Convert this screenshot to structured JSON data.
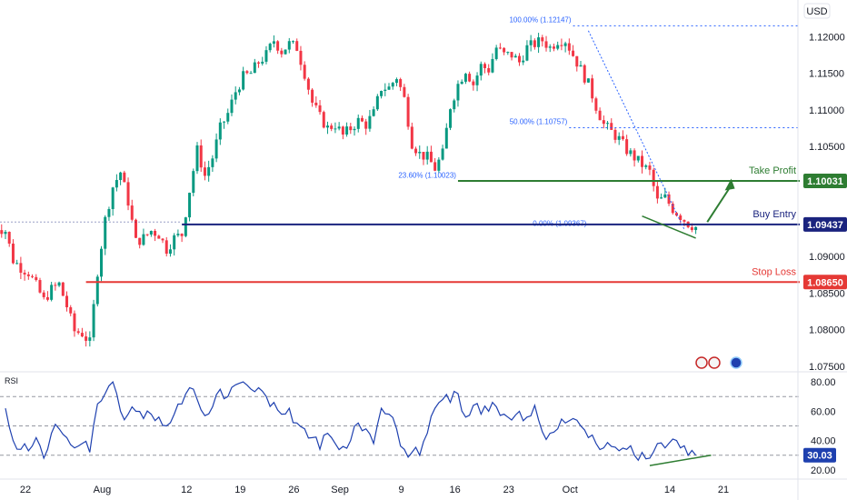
{
  "currency_label": "USD",
  "rsi_title": "RSI",
  "colors": {
    "up": "#089981",
    "down": "#f23645",
    "take_profit": "#2e7d32",
    "buy_entry": "#1a237e",
    "stop_loss": "#e53935",
    "fib": "#2962ff",
    "rsi_line": "#1e40af",
    "rsi_badge": "#1e40af",
    "grid": "#9598a1"
  },
  "chart_data": [
    {
      "type": "candlestick",
      "symbol_currency": "USD",
      "x_ticks": [
        {
          "label": "22",
          "day": 0
        },
        {
          "label": "Aug",
          "day": 10
        },
        {
          "label": "12",
          "day": 21
        },
        {
          "label": "19",
          "day": 28
        },
        {
          "label": "26",
          "day": 35
        },
        {
          "label": "Sep",
          "day": 41
        },
        {
          "label": "9",
          "day": 49
        },
        {
          "label": "16",
          "day": 56
        },
        {
          "label": "23",
          "day": 63
        },
        {
          "label": "Oct",
          "day": 71
        },
        {
          "label": "14",
          "day": 84
        },
        {
          "label": "21",
          "day": 91
        }
      ],
      "y_ticks": [
        1.12,
        1.115,
        1.11,
        1.105,
        1.1,
        1.09,
        1.085,
        1.08,
        1.075
      ],
      "y_tick_labels": [
        "1.12000",
        "1.11500",
        "1.11000",
        "1.10500",
        "1.10031",
        "1.09437",
        "1.09000",
        "1.08650",
        "1.08500",
        "1.08000",
        "1.07500"
      ],
      "ylim": [
        1.0745,
        1.1245
      ],
      "close_path": [
        [
          -2,
          1.0945
        ],
        [
          0,
          1.0935
        ],
        [
          1,
          1.0895
        ],
        [
          2,
          1.0885
        ],
        [
          3,
          1.0878
        ],
        [
          4,
          1.086
        ],
        [
          5,
          1.084
        ],
        [
          6,
          1.0855
        ],
        [
          7,
          1.0862
        ],
        [
          8,
          1.0832
        ],
        [
          9,
          1.0798
        ],
        [
          10,
          1.0795
        ],
        [
          11,
          1.0782
        ],
        [
          12,
          1.088
        ],
        [
          13,
          1.095
        ],
        [
          14,
          1.0995
        ],
        [
          15,
          1.1015
        ],
        [
          16,
          1.0975
        ],
        [
          17,
          1.092
        ],
        [
          18,
          1.0925
        ],
        [
          19,
          1.0935
        ],
        [
          20,
          1.093
        ],
        [
          21,
          1.091
        ],
        [
          22,
          1.0925
        ],
        [
          23,
          1.093
        ],
        [
          24,
          1.099
        ],
        [
          25,
          1.1045
        ],
        [
          26,
          1.101
        ],
        [
          27,
          1.1035
        ],
        [
          28,
          1.1075
        ],
        [
          29,
          1.1095
        ],
        [
          30,
          1.1125
        ],
        [
          31,
          1.1145
        ],
        [
          32,
          1.115
        ],
        [
          33,
          1.1165
        ],
        [
          34,
          1.1175
        ],
        [
          35,
          1.1195
        ],
        [
          36,
          1.118
        ],
        [
          37,
          1.119
        ],
        [
          38,
          1.1185
        ],
        [
          39,
          1.115
        ],
        [
          40,
          1.111
        ],
        [
          41,
          1.109
        ],
        [
          42,
          1.1075
        ],
        [
          43,
          1.108
        ],
        [
          44,
          1.1065
        ],
        [
          45,
          1.1075
        ],
        [
          46,
          1.1085
        ],
        [
          47,
          1.108
        ],
        [
          48,
          1.1095
        ],
        [
          49,
          1.113
        ],
        [
          50,
          1.113
        ],
        [
          51,
          1.1145
        ],
        [
          52,
          1.1115
        ],
        [
          53,
          1.1055
        ],
        [
          54,
          1.104
        ],
        [
          55,
          1.1035
        ],
        [
          56,
          1.102
        ],
        [
          57,
          1.104
        ],
        [
          58,
          1.1105
        ],
        [
          59,
          1.1135
        ],
        [
          60,
          1.1155
        ],
        [
          61,
          1.1135
        ],
        [
          62,
          1.116
        ],
        [
          63,
          1.1155
        ],
        [
          64,
          1.1185
        ],
        [
          65,
          1.1175
        ],
        [
          66,
          1.1175
        ],
        [
          67,
          1.1165
        ],
        [
          68,
          1.1185
        ],
        [
          69,
          1.119
        ],
        [
          70,
          1.1195
        ],
        [
          71,
          1.1185
        ],
        [
          72,
          1.1195
        ],
        [
          73,
          1.1195
        ],
        [
          74,
          1.1175
        ],
        [
          75,
          1.1155
        ],
        [
          76,
          1.1135
        ],
        [
          77,
          1.1105
        ],
        [
          78,
          1.108
        ],
        [
          79,
          1.107
        ],
        [
          80,
          1.106
        ],
        [
          81,
          1.1045
        ],
        [
          82,
          1.1035
        ],
        [
          83,
          1.1025
        ],
        [
          84,
          1.1015
        ],
        [
          85,
          1.0975
        ],
        [
          86,
          1.098
        ],
        [
          87,
          1.0965
        ],
        [
          88,
          1.0955
        ],
        [
          89,
          1.0945
        ],
        [
          90,
          1.094
        ]
      ],
      "levels": [
        {
          "name": "Take Profit",
          "price_label": "1.10031",
          "value": 1.10031
        },
        {
          "name": "Buy Entry",
          "price_label": "1.09437",
          "value": 1.09437
        },
        {
          "name": "Stop Loss",
          "price_label": "1.08650",
          "value": 1.0865
        }
      ],
      "fib_levels": [
        {
          "label": "100.00% (1.12147)",
          "value": 1.12147
        },
        {
          "label": "50.00% (1.10757)",
          "value": 1.10757
        },
        {
          "label": "23.60% (1.10023)",
          "value": 1.10023
        },
        {
          "label": "0.00% (1.09367)",
          "value": 1.09367
        }
      ]
    },
    {
      "type": "line",
      "title": "RSI",
      "y_ticks": [
        80,
        60,
        40,
        20
      ],
      "y_tick_labels": [
        "80.00",
        "60.00",
        "40.00",
        "20.00"
      ],
      "ylim": [
        15,
        85
      ],
      "reference_lines": [
        70,
        50,
        30
      ],
      "last_value": 30.03,
      "last_value_label": "30.03",
      "values": [
        [
          0,
          62
        ],
        [
          1,
          40
        ],
        [
          2,
          34
        ],
        [
          3,
          33
        ],
        [
          4,
          42
        ],
        [
          5,
          28
        ],
        [
          6,
          45
        ],
        [
          7,
          48
        ],
        [
          8,
          42
        ],
        [
          9,
          35
        ],
        [
          10,
          38
        ],
        [
          11,
          32
        ],
        [
          12,
          65
        ],
        [
          13,
          72
        ],
        [
          14,
          80
        ],
        [
          15,
          60
        ],
        [
          16,
          58
        ],
        [
          17,
          60
        ],
        [
          18,
          55
        ],
        [
          19,
          58
        ],
        [
          20,
          56
        ],
        [
          21,
          50
        ],
        [
          22,
          58
        ],
        [
          23,
          65
        ],
        [
          24,
          76
        ],
        [
          25,
          68
        ],
        [
          26,
          57
        ],
        [
          27,
          63
        ],
        [
          28,
          75
        ],
        [
          29,
          70
        ],
        [
          30,
          78
        ],
        [
          31,
          80
        ],
        [
          32,
          75
        ],
        [
          33,
          76
        ],
        [
          34,
          70
        ],
        [
          35,
          66
        ],
        [
          36,
          58
        ],
        [
          37,
          62
        ],
        [
          38,
          52
        ],
        [
          39,
          48
        ],
        [
          40,
          42
        ],
        [
          41,
          34
        ],
        [
          42,
          45
        ],
        [
          43,
          38
        ],
        [
          44,
          36
        ],
        [
          45,
          40
        ],
        [
          46,
          52
        ],
        [
          47,
          48
        ],
        [
          48,
          38
        ],
        [
          49,
          62
        ],
        [
          50,
          58
        ],
        [
          51,
          48
        ],
        [
          52,
          34
        ],
        [
          53,
          32
        ],
        [
          54,
          30
        ],
        [
          55,
          45
        ],
        [
          56,
          62
        ],
        [
          57,
          68
        ],
        [
          58,
          66
        ],
        [
          59,
          72
        ],
        [
          60,
          56
        ],
        [
          61,
          64
        ],
        [
          62,
          58
        ],
        [
          63,
          60
        ],
        [
          64,
          63
        ],
        [
          65,
          58
        ],
        [
          66,
          54
        ],
        [
          67,
          60
        ],
        [
          68,
          56
        ],
        [
          69,
          64
        ],
        [
          70,
          46
        ],
        [
          71,
          45
        ],
        [
          72,
          48
        ],
        [
          73,
          52
        ],
        [
          74,
          55
        ],
        [
          75,
          50
        ],
        [
          76,
          42
        ],
        [
          77,
          38
        ],
        [
          78,
          35
        ],
        [
          79,
          36
        ],
        [
          80,
          33
        ],
        [
          81,
          34
        ],
        [
          82,
          30
        ],
        [
          83,
          32
        ],
        [
          84,
          28
        ],
        [
          85,
          38
        ],
        [
          86,
          35
        ],
        [
          87,
          41
        ],
        [
          88,
          35
        ],
        [
          89,
          30
        ],
        [
          90,
          30.03
        ]
      ]
    }
  ]
}
